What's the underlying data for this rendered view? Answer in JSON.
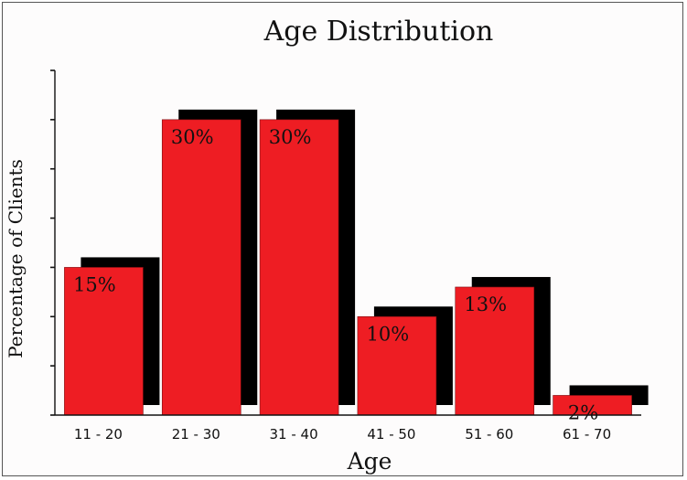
{
  "chart_data": {
    "type": "bar",
    "title": "Age Distribution",
    "xlabel": "Age",
    "ylabel": "Percentage of Clients",
    "categories": [
      "11 - 20",
      "21 - 30",
      "31 - 40",
      "41 - 50",
      "51 - 60",
      "61 - 70"
    ],
    "values": [
      15,
      30,
      30,
      10,
      13,
      2
    ],
    "data_labels": [
      "15%",
      "30%",
      "30%",
      "10%",
      "13%",
      "2%"
    ],
    "ylim": [
      0,
      35
    ],
    "y_tick_count": 7,
    "grid": false,
    "legend": "none",
    "style": "3d-shadow",
    "colors": {
      "bar": "#ee1d23",
      "shadow": "#000000",
      "text": "#111111"
    }
  }
}
